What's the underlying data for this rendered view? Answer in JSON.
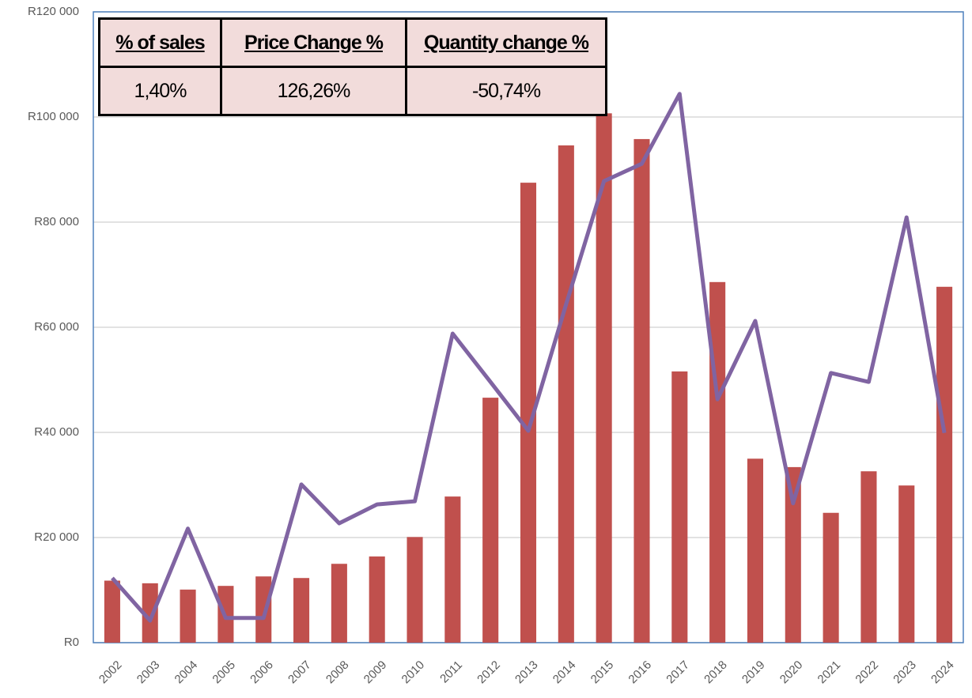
{
  "chart_data": {
    "type": "bar",
    "categories": [
      "2002",
      "2003",
      "2004",
      "2005",
      "2006",
      "2007",
      "2008",
      "2009",
      "2010",
      "2011",
      "2012",
      "2013",
      "2014",
      "2015",
      "2016",
      "2017",
      "2018",
      "2019",
      "2020",
      "2021",
      "2022",
      "2023",
      "2024"
    ],
    "series": [
      {
        "color": "#c0504d",
        "values": [
          11800,
          11300,
          10100,
          10800,
          12600,
          12300,
          15000,
          16400,
          20100,
          27800,
          46600,
          87500,
          94600,
          100700,
          95800,
          51600,
          68600,
          35000,
          33400,
          24700,
          32600,
          29900,
          67700
        ]
      },
      {
        "type": "line",
        "color": "#8064a2",
        "values": [
          12300,
          4200,
          21700,
          4700,
          4700,
          30100,
          22700,
          26300,
          26900,
          58800,
          49600,
          40300,
          64400,
          87800,
          91100,
          104400,
          46300,
          61200,
          26500,
          51300,
          49600,
          80900,
          39900
        ]
      }
    ],
    "ylim": [
      0,
      120000
    ],
    "yticks": [
      {
        "value": 0,
        "label": "R0"
      },
      {
        "value": 20000,
        "label": "R20 000"
      },
      {
        "value": 40000,
        "label": "R40 000"
      },
      {
        "value": 60000,
        "label": "R60 000"
      },
      {
        "value": 80000,
        "label": "R80 000"
      },
      {
        "value": 100000,
        "label": "R100 000"
      },
      {
        "value": 120000,
        "label": "R120 000"
      }
    ],
    "grid": true
  },
  "table": {
    "header": [
      "% of sales",
      "Price Change %",
      "Quantity change %"
    ],
    "rows": [
      [
        "1,40%",
        "126,26%",
        "-50,74%"
      ]
    ]
  }
}
